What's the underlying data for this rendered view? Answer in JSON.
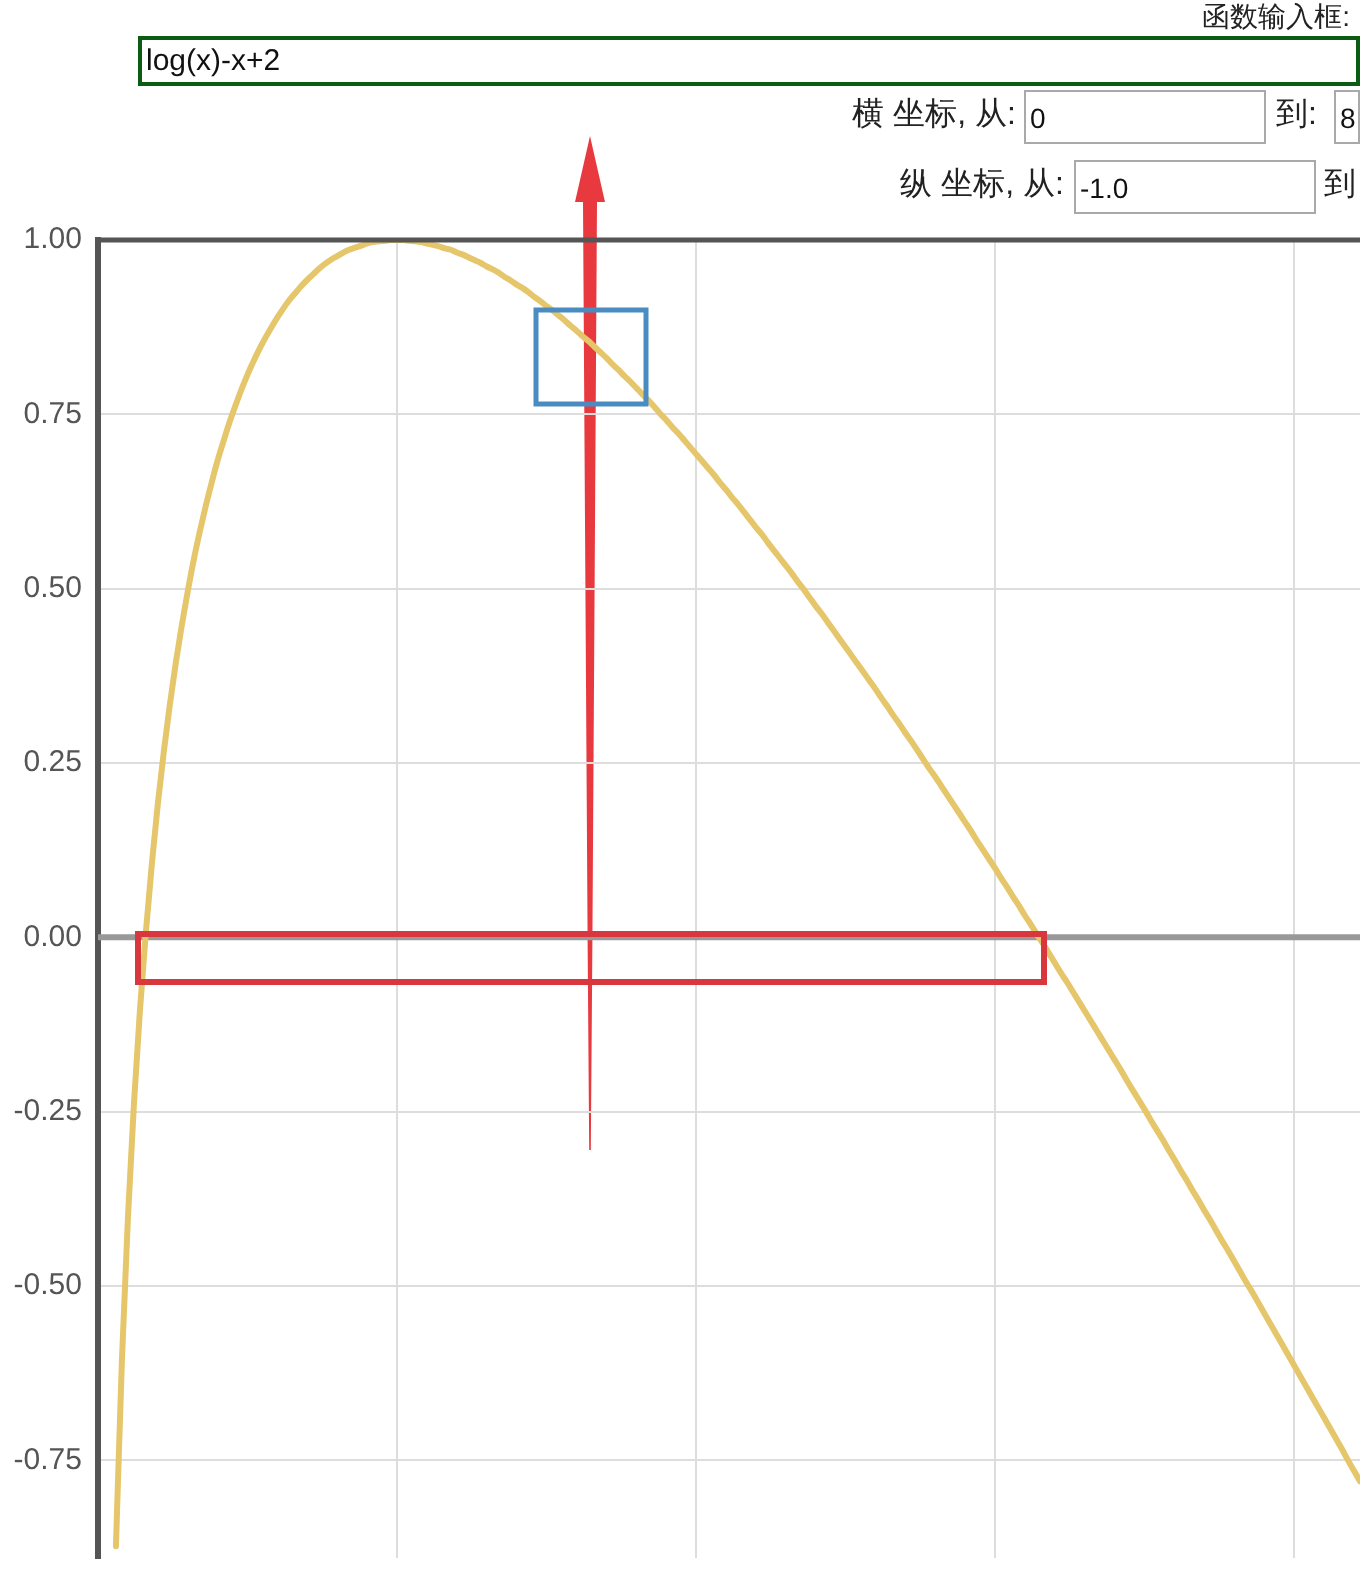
{
  "chart_data": {
    "type": "line",
    "annotations": [
      "函数输入框:",
      "log(x)-x+2",
      "横 坐标, 从:",
      "0",
      "到:",
      "8",
      "纵 坐标, 从:",
      "-1.0",
      "到"
    ],
    "categories": [
      null,
      null,
      null,
      null,
      null,
      null,
      null,
      null,
      null,
      null,
      null,
      null,
      null,
      null,
      null,
      null,
      null,
      null,
      null,
      null,
      null,
      null,
      null,
      null,
      null,
      null,
      null,
      null,
      null,
      null,
      null,
      null,
      null,
      null,
      null,
      null,
      null,
      null,
      null,
      null,
      null,
      null,
      null,
      null,
      null,
      null,
      null,
      null,
      null,
      null,
      null,
      null,
      null,
      null,
      null,
      null,
      null,
      null,
      null,
      null,
      null,
      null,
      null,
      null,
      null,
      null,
      null,
      null,
      null,
      null,
      null,
      null,
      null,
      null,
      null,
      null,
      null,
      null,
      null,
      null,
      null,
      null,
      null,
      null,
      null,
      null,
      null,
      null,
      null,
      null,
      null,
      null,
      null,
      null,
      null,
      null,
      null,
      null,
      null,
      null,
      null,
      null,
      null,
      null,
      null,
      null,
      null,
      null,
      null,
      null,
      null,
      null,
      null,
      null,
      null,
      null,
      null,
      null,
      null,
      null,
      null,
      null,
      null,
      null,
      null,
      null,
      null,
      null,
      null,
      null,
      null,
      null,
      null,
      null,
      null,
      null,
      null,
      null,
      null,
      null,
      null,
      null,
      null,
      null,
      null,
      null,
      null,
      null,
      null,
      null,
      null,
      null,
      null,
      null,
      null,
      null,
      null,
      null,
      null,
      null,
      null,
      null,
      null,
      null,
      null,
      null,
      null,
      null,
      null,
      null,
      null,
      null,
      null,
      null,
      null,
      null,
      null,
      null,
      null,
      null,
      null,
      null,
      null,
      null,
      null,
      null,
      null,
      null,
      null,
      null,
      null,
      null,
      null,
      null,
      null,
      null,
      null,
      null,
      null,
      null,
      null,
      null,
      null,
      null,
      null,
      null,
      null,
      null,
      null,
      null,
      null,
      null
    ],
    "values": [
      null,
      null,
      null,
      -0.873,
      -0.606,
      -0.403,
      -0.24,
      -0.106,
      0.007,
      0.105,
      0.191,
      0.266,
      0.333,
      0.393,
      0.447,
      0.496,
      0.541,
      0.581,
      0.618,
      0.652,
      0.684,
      0.712,
      0.739,
      0.763,
      0.786,
      0.807,
      0.826,
      0.844,
      0.86,
      0.875,
      0.889,
      0.902,
      0.914,
      0.924,
      0.934,
      0.943,
      0.951,
      0.959,
      0.966,
      0.972,
      0.977,
      0.982,
      0.986,
      0.989,
      0.992,
      0.995,
      0.997,
      0.998,
      0.999,
      1.0,
      1.0,
      1.0,
      0.999,
      0.998,
      0.997,
      0.995,
      0.993,
      0.991,
      0.988,
      0.986,
      0.982,
      0.979,
      0.975,
      0.971,
      0.967,
      0.962,
      0.958,
      0.953,
      0.947,
      0.942,
      0.936,
      0.931,
      0.925,
      0.918,
      0.912,
      0.905,
      0.899,
      0.892,
      0.885,
      0.877,
      0.87,
      0.862,
      0.855,
      0.847,
      0.839,
      0.831,
      0.822,
      0.814,
      0.805,
      0.797,
      0.788,
      0.779,
      0.77,
      0.761,
      0.751,
      0.742,
      0.732,
      0.723,
      0.713,
      0.703,
      0.693,
      0.683,
      0.673,
      0.663,
      0.652,
      0.642,
      0.631,
      0.621,
      0.61,
      0.599,
      0.588,
      0.578,
      0.566,
      0.555,
      0.544,
      0.533,
      0.522,
      0.51,
      0.499,
      0.487,
      0.475,
      0.464,
      0.452,
      0.44,
      0.428,
      0.416,
      0.404,
      0.392,
      0.38,
      0.368,
      0.356,
      0.343,
      0.331,
      0.318,
      0.306,
      0.293,
      0.281,
      0.268,
      0.255,
      0.242,
      0.23,
      0.217,
      0.204,
      0.191,
      0.178,
      0.165,
      0.152,
      0.138,
      0.125,
      0.112,
      0.099,
      0.085,
      0.072,
      0.058,
      0.045,
      0.031,
      0.018,
      0.004,
      -0.009,
      -0.023,
      -0.037,
      -0.051,
      -0.064,
      -0.078,
      -0.092,
      -0.106,
      -0.12,
      -0.134,
      -0.148,
      -0.162,
      -0.176,
      -0.19,
      -0.205,
      -0.219,
      -0.233,
      -0.247,
      -0.262,
      -0.276,
      -0.29,
      -0.305,
      -0.319,
      -0.334,
      -0.348,
      -0.363,
      -0.377,
      -0.392,
      -0.406,
      -0.421,
      -0.436,
      -0.45,
      -0.465,
      -0.48,
      -0.495,
      -0.509,
      -0.524,
      -0.539,
      -0.554,
      -0.569,
      -0.584,
      -0.599,
      -0.614,
      -0.629,
      -0.644,
      -0.659,
      -0.674,
      -0.689,
      -0.704,
      -0.719,
      -0.734,
      -0.75,
      -0.765,
      -0.78
    ],
    "color": "#e5c66b",
    "ylim": [
      -0.89,
      1
    ],
    "yticks": [
      {
        "value": 1,
        "label": "1.00"
      },
      0.75,
      {
        "value": 0.5,
        "label": "0.50"
      },
      0.25,
      {
        "value": 0,
        "label": "0.00"
      },
      -0.25,
      {
        "value": -0.5,
        "label": "-0.50"
      },
      -0.75
    ],
    "grid": true,
    "tick_labels": "y",
    "marker": "none",
    "ref_lines": [
      {
        "axis": "y",
        "value": 0,
        "color": "#999999"
      }
    ]
  }
}
